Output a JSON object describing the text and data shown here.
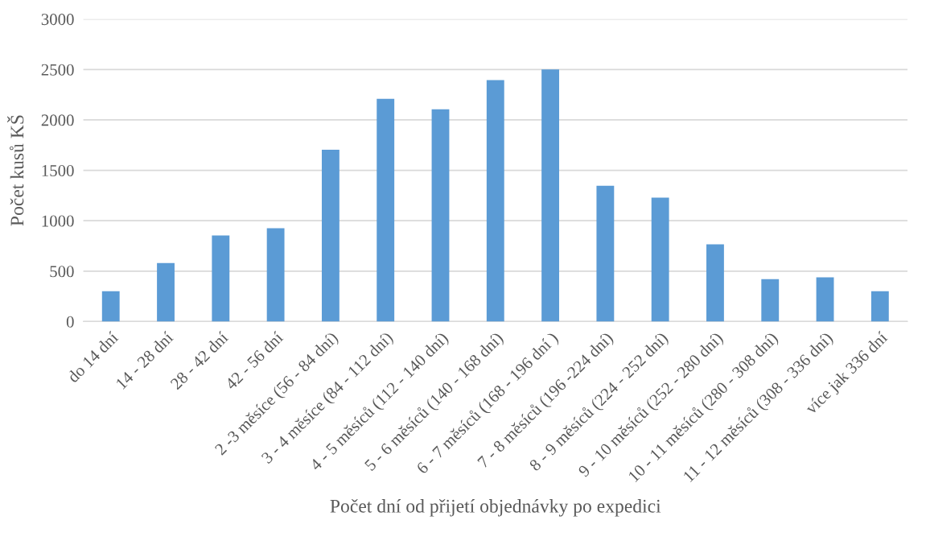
{
  "chart_data": {
    "type": "bar",
    "xlabel": "Počet dní od přijetí objednávky po expedici",
    "ylabel": "Počet kusů KŠ",
    "categories": [
      "do 14 dní",
      "14 - 28 dní",
      "28 - 42 dní",
      "42 - 56 dní",
      "2 -3 měsíce (56 - 84 dní)",
      "3 - 4 měsíce (84 - 112 dní)",
      "4 - 5 měsíců (112 - 140 dní)",
      "5 - 6 měsíců (140 - 168 dní)",
      "6 - 7 měsíců (168 - 196 dní )",
      "7 - 8 měsíců (196 -224 dní)",
      "8 - 9 měsíců (224 - 252 dní)",
      "9 - 10 měsíců (252 - 280 dní)",
      "10 - 11 měsíců (280 - 308 dní)",
      "11 - 12 měsíců (308 - 336 dní)",
      "více jak 336 dní"
    ],
    "values": [
      300,
      580,
      853,
      925,
      1705,
      2210,
      2105,
      2395,
      2500,
      1347,
      1230,
      766,
      421,
      438,
      300
    ],
    "color": "#5b9bd5",
    "ylim": [
      0,
      3000
    ],
    "yticks": [
      0,
      500,
      1000,
      1500,
      2000,
      2500,
      3000
    ],
    "grid": "y",
    "legend": false
  }
}
